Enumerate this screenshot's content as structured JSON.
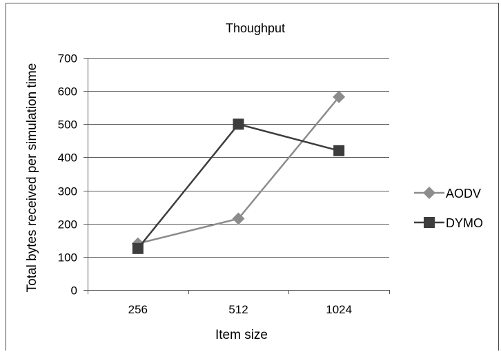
{
  "chart_data": {
    "type": "line",
    "title": "Thoughput",
    "xlabel": "Item size",
    "ylabel": "Total bytes received per simulation time",
    "categories": [
      "256",
      "512",
      "1024"
    ],
    "ylim": [
      0,
      700
    ],
    "yticks": [
      0,
      100,
      200,
      300,
      400,
      500,
      600,
      700
    ],
    "grid": true,
    "legend": "right",
    "series": [
      {
        "name": "AODV",
        "values": [
          140,
          215,
          582
        ],
        "color": "#8c8c8c",
        "marker": "diamond"
      },
      {
        "name": "DYMO",
        "values": [
          125,
          500,
          420
        ],
        "color": "#3d3d3d",
        "marker": "square"
      }
    ]
  }
}
